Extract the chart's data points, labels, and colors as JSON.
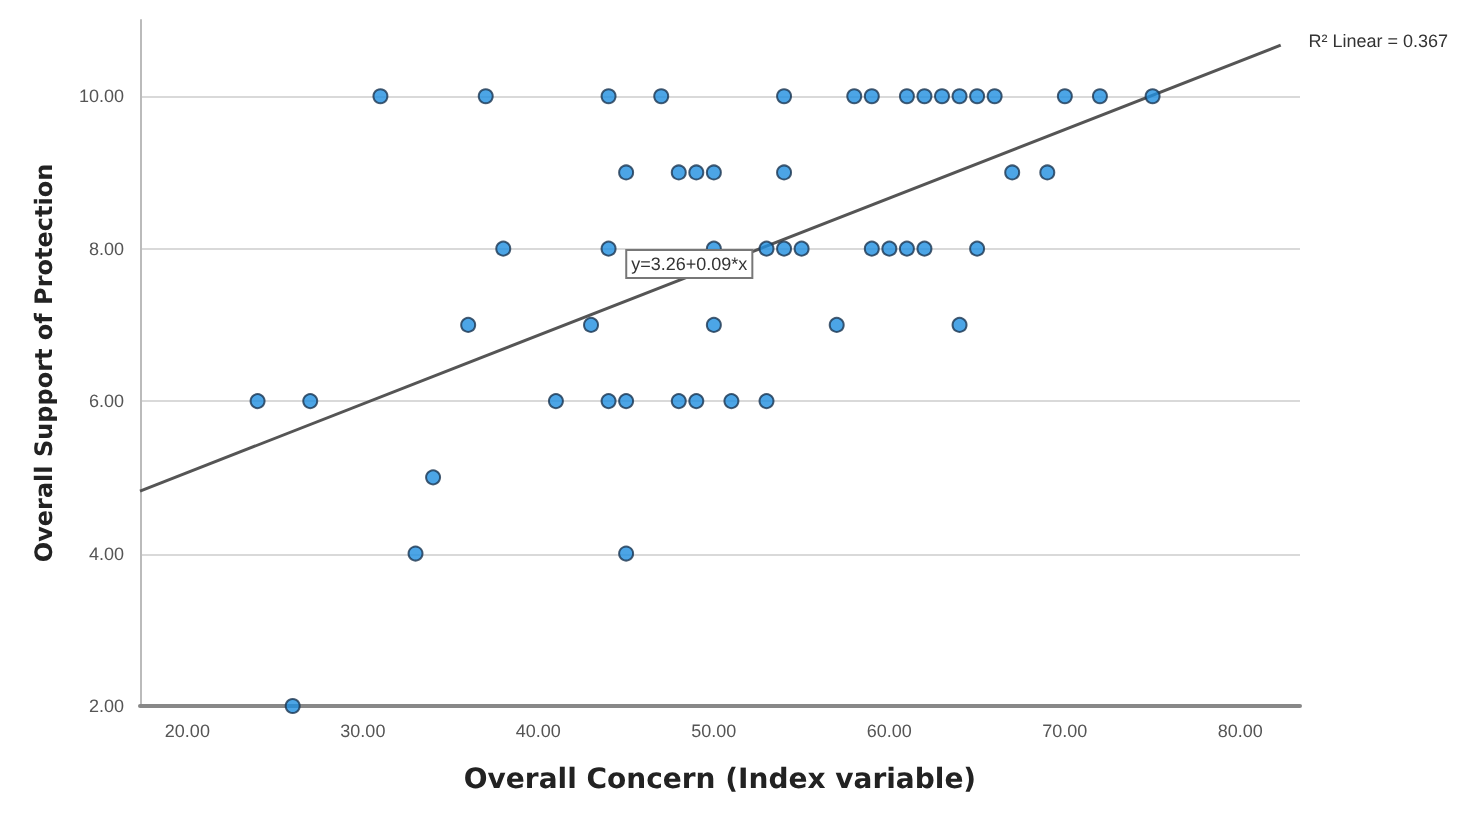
{
  "chart_data": {
    "type": "scatter",
    "xlabel": "Overall Concern (Index variable)",
    "ylabel": "Overall Support of Protection",
    "xlim": [
      17.3,
      83.4
    ],
    "ylim": [
      2,
      11
    ],
    "xticks": [
      {
        "value": 20,
        "label": "20.00"
      },
      {
        "value": 30,
        "label": "30.00"
      },
      {
        "value": 40,
        "label": "40.00"
      },
      {
        "value": 50,
        "label": "50.00"
      },
      {
        "value": 60,
        "label": "60.00"
      },
      {
        "value": 70,
        "label": "70.00"
      },
      {
        "value": 80,
        "label": "80.00"
      }
    ],
    "yticks": [
      {
        "value": 2,
        "label": "2.00"
      },
      {
        "value": 4,
        "label": "4.00"
      },
      {
        "value": 6,
        "label": "6.00"
      },
      {
        "value": 8,
        "label": "8.00"
      },
      {
        "value": 10,
        "label": "10.00"
      }
    ],
    "grid": "y",
    "series": [
      {
        "color": "#1f8fe0",
        "marker": "circle",
        "x": [
          31,
          37,
          44,
          47,
          54,
          58,
          59,
          61,
          62,
          63,
          64,
          65,
          66,
          70,
          72,
          75,
          45,
          48,
          49,
          50,
          54,
          67,
          69,
          38,
          44,
          50,
          53,
          54,
          55,
          59,
          60,
          61,
          62,
          65,
          36,
          43,
          50,
          57,
          64,
          24,
          27,
          41,
          44,
          45,
          48,
          49,
          51,
          53,
          34,
          33,
          45,
          26
        ],
        "values": [
          10,
          10,
          10,
          10,
          10,
          10,
          10,
          10,
          10,
          10,
          10,
          10,
          10,
          10,
          10,
          10,
          9,
          9,
          9,
          9,
          9,
          9,
          9,
          8,
          8,
          8,
          8,
          8,
          8,
          8,
          8,
          8,
          8,
          8,
          7,
          7,
          7,
          7,
          7,
          6,
          6,
          6,
          6,
          6,
          6,
          6,
          6,
          6,
          5,
          4,
          4,
          2
        ]
      },
      {
        "type": "line",
        "color": "#555555",
        "marker": "none",
        "line_style": "solid",
        "x": [
          17.3,
          82.3
        ],
        "values": [
          4.82,
          10.67
        ]
      }
    ],
    "annotations": [
      {
        "text": "y=3.26+0.09*x",
        "x": 48.6,
        "y": 7.8
      },
      "R² Linear = 0.367"
    ]
  }
}
